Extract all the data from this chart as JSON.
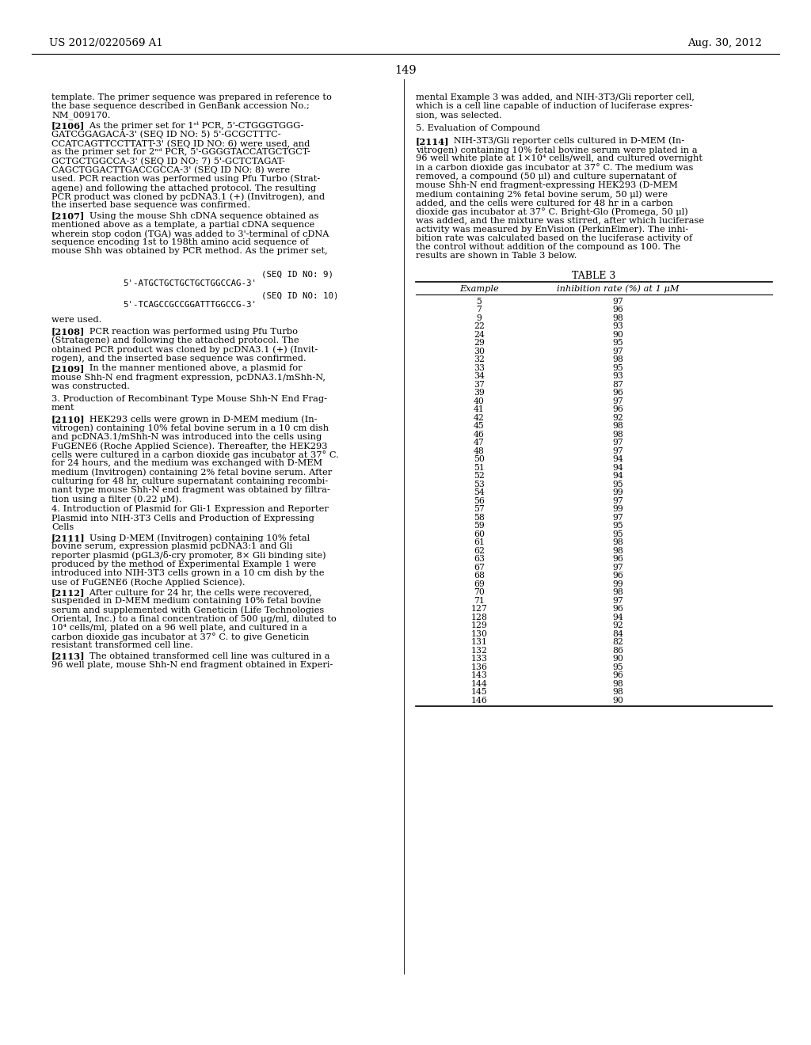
{
  "page_number": "149",
  "header_left": "US 2012/0220569 A1",
  "header_right": "Aug. 30, 2012",
  "bg": "#ffffff",
  "table_data": [
    [
      "5",
      "97"
    ],
    [
      "7",
      "96"
    ],
    [
      "9",
      "98"
    ],
    [
      "22",
      "93"
    ],
    [
      "24",
      "90"
    ],
    [
      "29",
      "95"
    ],
    [
      "30",
      "97"
    ],
    [
      "32",
      "98"
    ],
    [
      "33",
      "95"
    ],
    [
      "34",
      "93"
    ],
    [
      "37",
      "87"
    ],
    [
      "39",
      "96"
    ],
    [
      "40",
      "97"
    ],
    [
      "41",
      "96"
    ],
    [
      "42",
      "92"
    ],
    [
      "45",
      "98"
    ],
    [
      "46",
      "98"
    ],
    [
      "47",
      "97"
    ],
    [
      "48",
      "97"
    ],
    [
      "50",
      "94"
    ],
    [
      "51",
      "94"
    ],
    [
      "52",
      "94"
    ],
    [
      "53",
      "95"
    ],
    [
      "54",
      "99"
    ],
    [
      "56",
      "97"
    ],
    [
      "57",
      "99"
    ],
    [
      "58",
      "97"
    ],
    [
      "59",
      "95"
    ],
    [
      "60",
      "95"
    ],
    [
      "61",
      "98"
    ],
    [
      "62",
      "98"
    ],
    [
      "63",
      "96"
    ],
    [
      "67",
      "97"
    ],
    [
      "68",
      "96"
    ],
    [
      "69",
      "99"
    ],
    [
      "70",
      "98"
    ],
    [
      "71",
      "97"
    ],
    [
      "127",
      "96"
    ],
    [
      "128",
      "94"
    ],
    [
      "129",
      "92"
    ],
    [
      "130",
      "84"
    ],
    [
      "131",
      "82"
    ],
    [
      "132",
      "86"
    ],
    [
      "133",
      "90"
    ],
    [
      "136",
      "95"
    ],
    [
      "143",
      "96"
    ],
    [
      "144",
      "98"
    ],
    [
      "145",
      "98"
    ],
    [
      "146",
      "90"
    ]
  ],
  "left_paragraphs": [
    {
      "tag": "",
      "text": "template. The primer sequence was prepared in reference to\nthe base sequence described in GenBank accession No.;\nNM_009170."
    },
    {
      "tag": "[2106]",
      "text": "   As the primer set for 1ˢᵗ PCR, 5’-CTGGGTGGG-\nGATCGGAGACA-3’ (SEQ ID NO: 5) 5’-GCGCTTTC-\nCCATCAGTTCCTTATT-3’ (SEQ ID NO: 6) were used, and\nas the primer set for 2ⁿᵈ PCR, 5’-GGGGTACCATGCTGCT-\nGCTGCTGGCCA-3’ (SEQ ID NO: 7) 5’-GCTCTAGAT-\nCAGCTGGACTTGACCGCCA-3’ (SEQ ID NO: 8) were\nused. PCR reaction was performed using Pfu Turbo (Strat-\nagene) and following the attached protocol. The resulting\nPCR product was cloned by pcDNA3.1 (+) (Invitrogen), and\nthe inserted base sequence was confirmed."
    },
    {
      "tag": "[2107]",
      "text": "   Using the mouse Shh cDNA sequence obtained as\nmentioned above as a template, a partial cDNA sequence\nwherein stop codon (TGA) was added to 3’-terminal of cDNA\nsequence encoding 1st to 198th amino acid sequence of\nmouse Shh was obtained by PCR method. As the primer set,"
    }
  ],
  "right_paragraphs": [
    {
      "tag": "",
      "text": "mental Example 3 was added, and NIH-3T3/Gli reporter cell,\nwhich is a cell line capable of induction of luciferase expres-\nsion, was selected."
    },
    {
      "tag": "5.",
      "text": " Evaluation of Compound",
      "italic": true
    },
    {
      "tag": "[2114]",
      "text": "   NIH-3T3/Gli reporter cells cultured in D-MEM (In-\nvitrogen) containing 10% fetal bovine serum were plated in a\n96 well white plate at 1×10⁴ cells/well, and cultured overnight\nin a carbon dioxide gas incubator at 37° C. The medium was\nremoved, a compound (50 μl) and culture supernatant of\nmouse Shh-N end fragment-expressing HEK293 (D-MEM\nmedium containing 2% fetal bovine serum, 50 μl) were\nadded, and the cells were cultured for 48 hr in a carbon\ndioxide gas incubator at 37° C. Bright-Glo (Promega, 50 μl)\nwas added, and the mixture was stirred, after which luciferase\nactivity was measured by EnVision (PerkinElmer). The inhi-\nbition rate was calculated based on the luciferase activity of\nthe control without addition of the compound as 100. The\nresults are shown in Table 3 below."
    }
  ]
}
